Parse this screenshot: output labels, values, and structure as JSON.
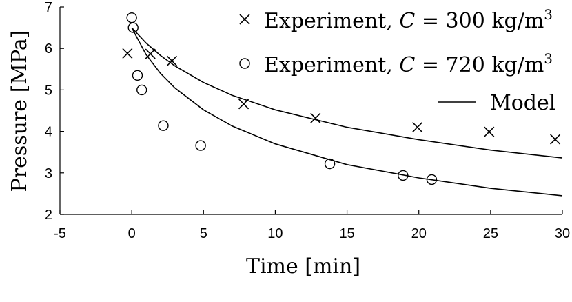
{
  "chart_data": {
    "type": "scatter",
    "xlabel": "Time [min]",
    "ylabel": "Pressure [MPa]",
    "xlim": [
      -5,
      30
    ],
    "ylim": [
      2,
      7
    ],
    "x_ticks": [
      "-5",
      "0",
      "5",
      "10",
      "15",
      "20",
      "25",
      "30"
    ],
    "y_ticks": [
      "2",
      "3",
      "4",
      "5",
      "6",
      "7"
    ],
    "grid": false,
    "legend_position": "top-right",
    "series": [
      {
        "name": "Experiment, C = 300 kg/m³",
        "legend_prefix": "Experiment, ",
        "legend_var": "C",
        "legend_eq": " = 300 kg/m",
        "legend_sup": "3",
        "marker": "x",
        "points": [
          {
            "x": -0.3,
            "y": 5.88
          },
          {
            "x": 1.3,
            "y": 5.87
          },
          {
            "x": 2.8,
            "y": 5.7
          },
          {
            "x": 7.8,
            "y": 4.66
          },
          {
            "x": 12.8,
            "y": 4.32
          },
          {
            "x": 19.9,
            "y": 4.1
          },
          {
            "x": 24.9,
            "y": 3.99
          },
          {
            "x": 29.5,
            "y": 3.81
          }
        ]
      },
      {
        "name": "Experiment, C = 720 kg/m³",
        "legend_prefix": "Experiment, ",
        "legend_var": "C",
        "legend_eq": " = 720 kg/m",
        "legend_sup": "3",
        "marker": "o",
        "points": [
          {
            "x": 0.0,
            "y": 6.74
          },
          {
            "x": 0.1,
            "y": 6.5
          },
          {
            "x": 0.4,
            "y": 5.35
          },
          {
            "x": 0.7,
            "y": 5.0
          },
          {
            "x": 2.2,
            "y": 4.14
          },
          {
            "x": 4.8,
            "y": 3.66
          },
          {
            "x": 13.8,
            "y": 3.22
          },
          {
            "x": 18.9,
            "y": 2.94
          },
          {
            "x": 20.9,
            "y": 2.84
          }
        ]
      },
      {
        "name": "Model",
        "marker": "line",
        "curves": [
          [
            {
              "x": 0.0,
              "y": 6.5
            },
            {
              "x": 1,
              "y": 6.13
            },
            {
              "x": 2,
              "y": 5.83
            },
            {
              "x": 3,
              "y": 5.58
            },
            {
              "x": 5,
              "y": 5.18
            },
            {
              "x": 7,
              "y": 4.87
            },
            {
              "x": 10,
              "y": 4.52
            },
            {
              "x": 15,
              "y": 4.1
            },
            {
              "x": 20,
              "y": 3.8
            },
            {
              "x": 25,
              "y": 3.55
            },
            {
              "x": 30,
              "y": 3.36
            }
          ],
          [
            {
              "x": 0.0,
              "y": 6.5
            },
            {
              "x": 1,
              "y": 5.85
            },
            {
              "x": 2,
              "y": 5.4
            },
            {
              "x": 3,
              "y": 5.05
            },
            {
              "x": 5,
              "y": 4.52
            },
            {
              "x": 7,
              "y": 4.13
            },
            {
              "x": 10,
              "y": 3.7
            },
            {
              "x": 15,
              "y": 3.2
            },
            {
              "x": 20,
              "y": 2.88
            },
            {
              "x": 25,
              "y": 2.63
            },
            {
              "x": 30,
              "y": 2.45
            }
          ]
        ]
      }
    ]
  }
}
